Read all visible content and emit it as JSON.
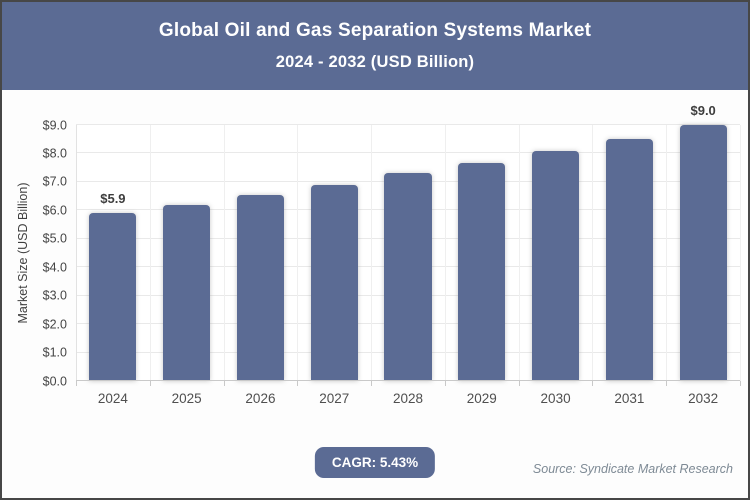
{
  "header": {
    "title_line1": "Global Oil and Gas Separation Systems Market",
    "title_line2": "2024 - 2032 (USD Billion)"
  },
  "chart_data": {
    "type": "bar",
    "title": "Global Oil and Gas Separation Systems Market 2024 - 2032 (USD Billion)",
    "categories": [
      "2024",
      "2025",
      "2026",
      "2027",
      "2028",
      "2029",
      "2030",
      "2031",
      "2032"
    ],
    "values": [
      5.9,
      6.2,
      6.55,
      6.9,
      7.3,
      7.65,
      8.1,
      8.5,
      9.0
    ],
    "bar_labels": [
      "$5.9",
      "",
      "",
      "",
      "",
      "",
      "",
      "",
      "$9.0"
    ],
    "xlabel": "",
    "ylabel": "Market Size (USD Billion)",
    "ylim": [
      0,
      9
    ],
    "yticks": [
      0,
      1,
      2,
      3,
      4,
      5,
      6,
      7,
      8,
      9
    ],
    "ytick_labels": [
      "$0.0",
      "$1.0",
      "$2.0",
      "$3.0",
      "$4.0",
      "$5.0",
      "$6.0",
      "$7.0",
      "$8.0",
      "$9.0"
    ],
    "grid": true,
    "legend": false,
    "bar_color": "#5b6b94"
  },
  "footer": {
    "cagr_badge": "CAGR: 5.43%",
    "source": "Source: Syndicate Market Research"
  },
  "colors": {
    "accent": "#5b6b94",
    "header_bg": "#5b6b94",
    "header_text": "#ffffff",
    "grid_line": "#e9e9e9",
    "axis_line": "#c9c9c9",
    "tick_text": "#454545",
    "category_text": "#4f4f4f",
    "bar_label_text": "#3d3d3d",
    "source_text": "#7e8a95",
    "frame_border": "#474747",
    "page_bg": "#fdfdfd"
  }
}
